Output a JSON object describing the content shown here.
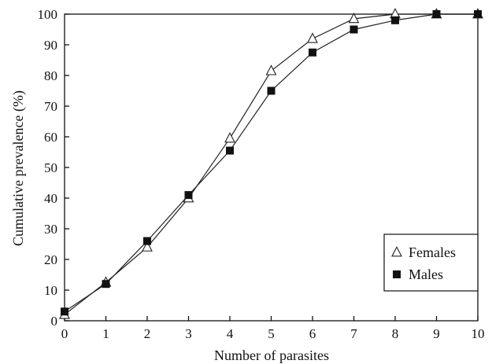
{
  "chart_data": {
    "type": "line",
    "title": "",
    "xlabel": "Number of parasites",
    "ylabel": "Cumulative prevalence (%)",
    "xlim": [
      0,
      10
    ],
    "ylim": [
      0,
      100
    ],
    "x_ticks": [
      "0",
      "1",
      "2",
      "3",
      "4",
      "5",
      "6",
      "7",
      "8",
      "9",
      "10"
    ],
    "y_ticks": [
      "0",
      "10",
      "20",
      "30",
      "40",
      "50",
      "60",
      "70",
      "80",
      "90",
      "100"
    ],
    "grid": false,
    "legend_position": "bottom-right",
    "x": [
      0,
      1,
      2,
      3,
      4,
      5,
      6,
      7,
      8,
      9,
      10
    ],
    "series": [
      {
        "name": "Females",
        "marker": "open-triangle",
        "color": "#222222",
        "values": [
          2,
          12.5,
          24,
          40,
          59.5,
          81.5,
          92,
          98.5,
          100,
          100,
          100
        ]
      },
      {
        "name": "Males",
        "marker": "filled-square",
        "color": "#111111",
        "values": [
          3,
          12,
          26,
          41,
          55.5,
          75,
          87.5,
          95,
          98,
          100,
          100
        ]
      }
    ]
  }
}
